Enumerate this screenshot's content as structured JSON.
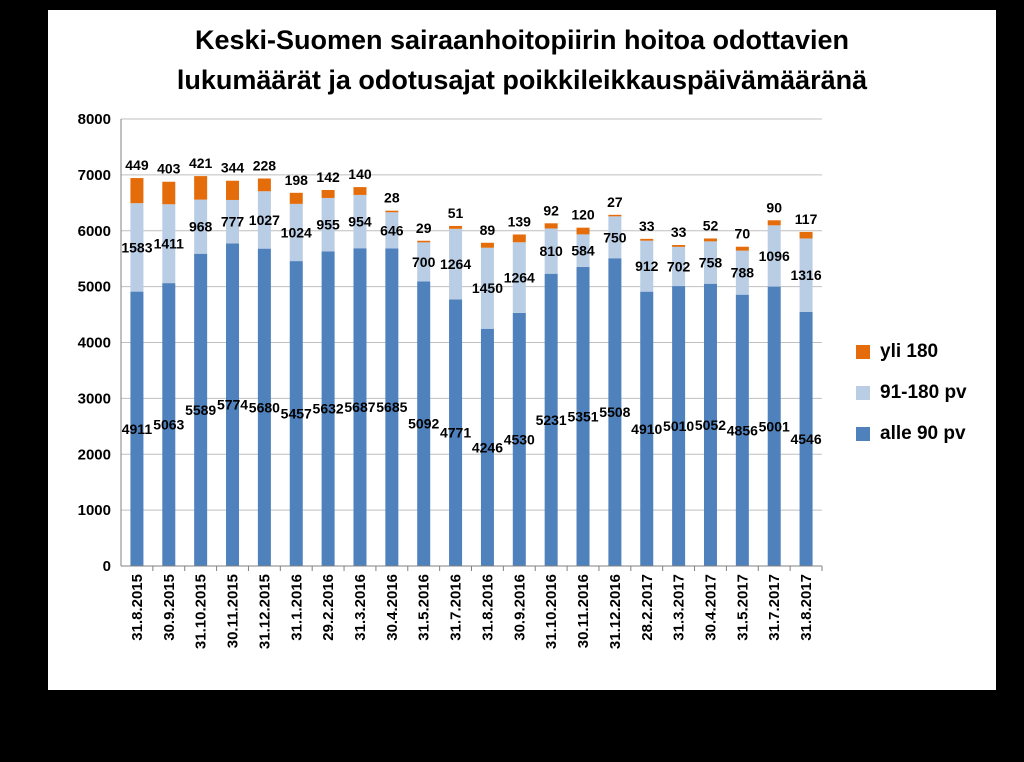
{
  "chart_data": {
    "type": "bar",
    "stacked": true,
    "title_lines": [
      "Keski-Suomen sairaanhoitopiirin hoitoa odottavien",
      "lukumäärät ja odotusajat poikkileikkauspäivämääränä"
    ],
    "xlabel": "",
    "ylabel": "",
    "ylim": [
      0,
      8000
    ],
    "yticks": [
      "0",
      "1000",
      "2000",
      "3000",
      "4000",
      "5000",
      "6000",
      "7000",
      "8000"
    ],
    "grid": true,
    "legend_position": "right",
    "categories": [
      "31.8.2015",
      "30.9.2015",
      "31.10.2015",
      "30.11.2015",
      "31.12.2015",
      "31.1.2016",
      "29.2.2016",
      "31.3.2016",
      "30.4.2016",
      "31.5.2016",
      "31.7.2016",
      "31.8.2016",
      "30.9.2016",
      "31.10.2016",
      "30.11.2016",
      "31.12.2016",
      "28.2.2017",
      "31.3.2017",
      "30.4.2017",
      "31.5.2017",
      "31.7.2017",
      "31.8.2017"
    ],
    "series": [
      {
        "name": "alle 90 pv",
        "color": "#4F81BD",
        "values": [
          4911,
          5063,
          5589,
          5774,
          5680,
          5457,
          5632,
          5687,
          5685,
          5092,
          4771,
          4246,
          4530,
          5231,
          5351,
          5508,
          4910,
          5010,
          5052,
          4856,
          5001,
          4546
        ]
      },
      {
        "name": "91-180 pv",
        "color": "#B9CDE5",
        "values": [
          1583,
          1411,
          968,
          777,
          1027,
          1024,
          955,
          954,
          646,
          700,
          1264,
          1450,
          1264,
          810,
          584,
          750,
          912,
          702,
          758,
          788,
          1096,
          1316
        ]
      },
      {
        "name": "yli 180",
        "color": "#E46C0A",
        "values": [
          449,
          403,
          421,
          344,
          228,
          198,
          142,
          140,
          28,
          29,
          51,
          89,
          139,
          92,
          120,
          27,
          33,
          33,
          52,
          70,
          90,
          117
        ]
      }
    ],
    "legend_order": [
      "yli 180",
      "91-180 pv",
      "alle 90 pv"
    ]
  }
}
